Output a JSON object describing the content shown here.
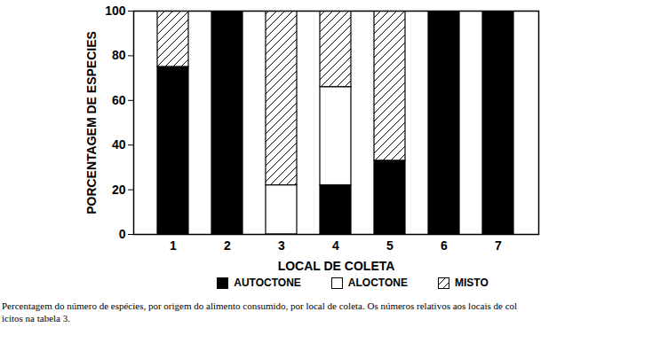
{
  "chart_data": {
    "type": "bar",
    "stacked": true,
    "categories": [
      "1",
      "2",
      "3",
      "4",
      "5",
      "6",
      "7"
    ],
    "series": [
      {
        "name": "AUTOCTONE",
        "color": "#000000",
        "values": [
          75,
          100,
          0,
          22,
          33,
          100,
          100
        ]
      },
      {
        "name": "ALOCTONE",
        "color": "#ffffff",
        "values": [
          0,
          0,
          22,
          44,
          0,
          0,
          0
        ]
      },
      {
        "name": "MISTO",
        "color": "#ffffff",
        "line_style": "hatched",
        "values": [
          25,
          0,
          78,
          34,
          67,
          0,
          0
        ]
      }
    ],
    "xlabel": "LOCAL DE COLETA",
    "ylabel": "PORCENTAGEM DE ESPECIES",
    "ylim": [
      0,
      100
    ],
    "yticks": [
      0,
      20,
      40,
      60,
      80,
      100
    ],
    "legend": "bottom",
    "caption": [
      "Percentagem do número de espécies, por origem do alimento consumido, por local de coleta. Os números relativos aos locais de col",
      "icitos na tabela 3."
    ]
  }
}
